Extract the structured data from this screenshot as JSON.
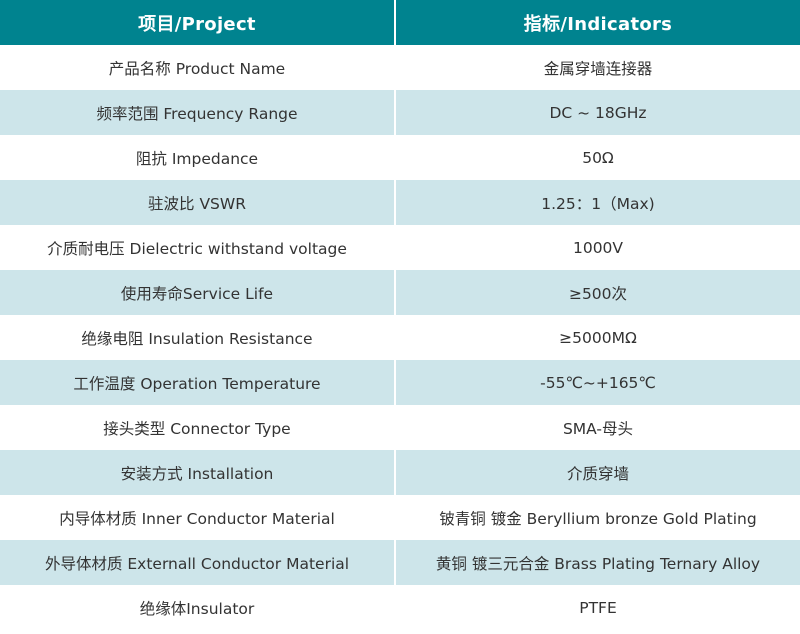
{
  "colors": {
    "header_bg": "#00838f",
    "header_text": "#ffffff",
    "row_alt_bg": "#cde5ea",
    "row_bg": "#ffffff",
    "body_text": "#333333"
  },
  "table": {
    "headers": [
      "项目/Project",
      "指标/Indicators"
    ],
    "rows": [
      {
        "item": "产品名称 Product Name",
        "value": "金属穿墙连接器"
      },
      {
        "item": "频率范围 Frequency Range",
        "value": "DC ~ 18GHz"
      },
      {
        "item": "阻抗 Impedance",
        "value": "50Ω"
      },
      {
        "item": "驻波比 VSWR",
        "value": "1.25：1（Max)"
      },
      {
        "item": "介质耐电压 Dielectric withstand voltage",
        "value": "1000V"
      },
      {
        "item": "使用寿命Service Life",
        "value": "≥500次"
      },
      {
        "item": "绝缘电阻 Insulation Resistance",
        "value": "≥5000MΩ"
      },
      {
        "item": "工作温度 Operation Temperature",
        "value": "-55℃~+165℃"
      },
      {
        "item": "接头类型  Connector Type",
        "value": "SMA-母头"
      },
      {
        "item": "安装方式 Installation",
        "value": "介质穿墙"
      },
      {
        "item": "内导体材质 Inner Conductor Material",
        "value": "铍青铜 镀金 Beryllium bronze Gold Plating"
      },
      {
        "item": "外导体材质 Externall Conductor Material",
        "value": "黄铜 镀三元合金 Brass Plating Ternary Alloy"
      },
      {
        "item": "绝缘体Insulator",
        "value": "PTFE"
      }
    ]
  }
}
